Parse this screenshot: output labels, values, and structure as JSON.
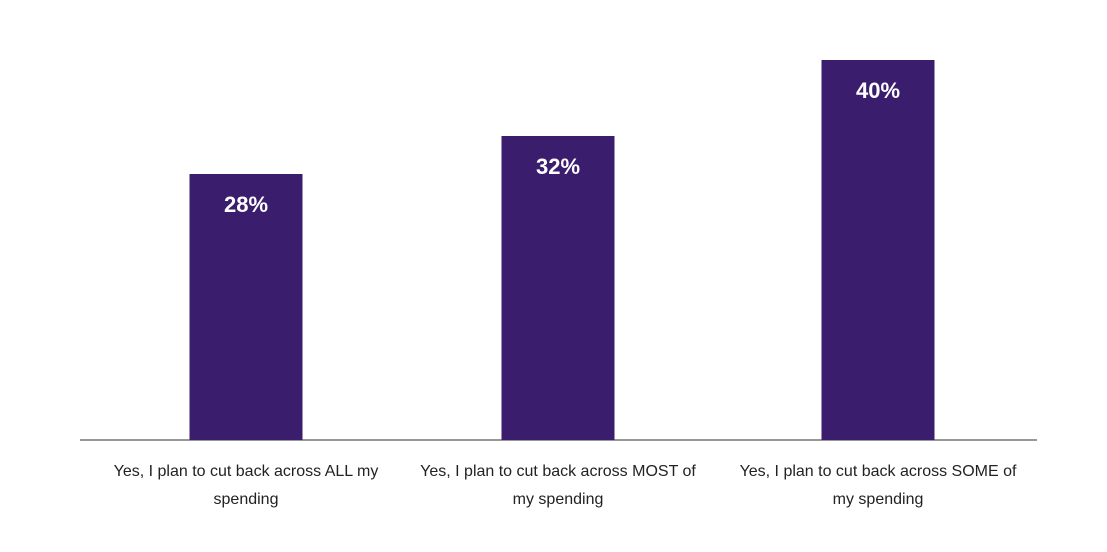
{
  "chart_data": {
    "type": "bar",
    "categories": [
      "Yes, I plan to cut back across ALL my spending",
      "Yes, I plan to cut back across MOST of my spending",
      "Yes, I plan to cut back across SOME of my spending"
    ],
    "values": [
      28,
      32,
      40
    ],
    "value_labels": [
      "28%",
      "32%",
      "40%"
    ],
    "color": "#3b1d6e"
  }
}
